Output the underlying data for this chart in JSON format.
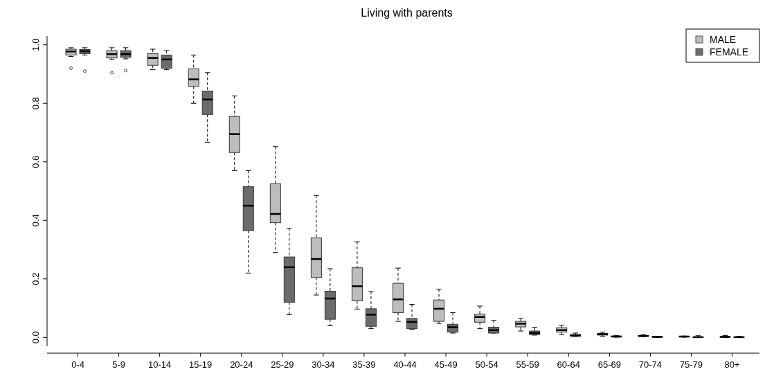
{
  "chart_data": {
    "type": "box",
    "title": "Living with parents",
    "categories": [
      "0-4",
      "5-9",
      "10-14",
      "15-19",
      "20-24",
      "25-29",
      "30-34",
      "35-39",
      "40-44",
      "45-49",
      "50-54",
      "55-59",
      "60-64",
      "65-69",
      "70-74",
      "75-79",
      "80+"
    ],
    "ylim": [
      -0.03,
      1.03
    ],
    "yticks": [
      {
        "value": 0,
        "label": "0.0"
      },
      {
        "value": 0.2,
        "label": "0.2"
      },
      {
        "value": 0.4,
        "label": "0.4"
      },
      {
        "value": 0.6,
        "label": "0.6"
      },
      {
        "value": 0.8,
        "label": "0.8"
      },
      {
        "value": 1,
        "label": "1.0"
      }
    ],
    "legend": "top right",
    "line_style": "dashed",
    "grid": false,
    "series": [
      {
        "name": "MALE",
        "color": "#bdbdbd",
        "boxes": [
          {
            "low": 0.96,
            "q1": 0.965,
            "median": 0.977,
            "q3": 0.985,
            "high": 0.99,
            "outliers": [
              0.92
            ]
          },
          {
            "low": 0.95,
            "q1": 0.955,
            "median": 0.968,
            "q3": 0.98,
            "high": 0.99,
            "outliers": [
              0.905
            ]
          },
          {
            "low": 0.915,
            "q1": 0.93,
            "median": 0.955,
            "q3": 0.97,
            "high": 0.985
          },
          {
            "low": 0.8,
            "q1": 0.858,
            "median": 0.882,
            "q3": 0.918,
            "high": 0.965
          },
          {
            "low": 0.57,
            "q1": 0.632,
            "median": 0.695,
            "q3": 0.755,
            "high": 0.825
          },
          {
            "low": 0.29,
            "q1": 0.392,
            "median": 0.422,
            "q3": 0.525,
            "high": 0.652
          },
          {
            "low": 0.145,
            "q1": 0.205,
            "median": 0.268,
            "q3": 0.34,
            "high": 0.485
          },
          {
            "low": 0.097,
            "q1": 0.125,
            "median": 0.175,
            "q3": 0.238,
            "high": 0.327
          },
          {
            "low": 0.055,
            "q1": 0.085,
            "median": 0.13,
            "q3": 0.185,
            "high": 0.237
          },
          {
            "low": 0.048,
            "q1": 0.055,
            "median": 0.098,
            "q3": 0.128,
            "high": 0.165
          },
          {
            "low": 0.03,
            "q1": 0.052,
            "median": 0.07,
            "q3": 0.08,
            "high": 0.107
          },
          {
            "low": 0.022,
            "q1": 0.036,
            "median": 0.047,
            "q3": 0.055,
            "high": 0.065
          },
          {
            "low": 0.01,
            "q1": 0.018,
            "median": 0.025,
            "q3": 0.033,
            "high": 0.042
          },
          {
            "low": 0.004,
            "q1": 0.008,
            "median": 0.011,
            "q3": 0.014,
            "high": 0.018
          },
          {
            "low": 0.003,
            "q1": 0.004,
            "median": 0.005,
            "q3": 0.007,
            "high": 0.009
          },
          {
            "low": 0.001,
            "q1": 0.002,
            "median": 0.003,
            "q3": 0.004,
            "high": 0.005
          },
          {
            "low": 0,
            "q1": 0.001,
            "median": 0.002,
            "q3": 0.003,
            "high": 0.007
          }
        ]
      },
      {
        "name": "FEMALE",
        "color": "#6b6b6b",
        "boxes": [
          {
            "low": 0.965,
            "q1": 0.97,
            "median": 0.978,
            "q3": 0.984,
            "high": 0.99,
            "outliers": [
              0.91
            ]
          },
          {
            "low": 0.952,
            "q1": 0.957,
            "median": 0.968,
            "q3": 0.98,
            "high": 0.99,
            "outliers": [
              0.912
            ]
          },
          {
            "low": 0.915,
            "q1": 0.92,
            "median": 0.95,
            "q3": 0.965,
            "high": 0.98
          },
          {
            "low": 0.667,
            "q1": 0.762,
            "median": 0.813,
            "q3": 0.842,
            "high": 0.905
          },
          {
            "low": 0.22,
            "q1": 0.365,
            "median": 0.45,
            "q3": 0.515,
            "high": 0.57
          },
          {
            "low": 0.078,
            "q1": 0.12,
            "median": 0.24,
            "q3": 0.275,
            "high": 0.373
          },
          {
            "low": 0.04,
            "q1": 0.062,
            "median": 0.133,
            "q3": 0.158,
            "high": 0.235
          },
          {
            "low": 0.03,
            "q1": 0.038,
            "median": 0.078,
            "q3": 0.098,
            "high": 0.157
          },
          {
            "low": 0.028,
            "q1": 0.03,
            "median": 0.053,
            "q3": 0.065,
            "high": 0.113
          },
          {
            "low": 0.015,
            "q1": 0.018,
            "median": 0.035,
            "q3": 0.045,
            "high": 0.085
          },
          {
            "low": 0.015,
            "q1": 0.015,
            "median": 0.025,
            "q3": 0.035,
            "high": 0.058
          },
          {
            "low": 0.008,
            "q1": 0.01,
            "median": 0.015,
            "q3": 0.022,
            "high": 0.035
          },
          {
            "low": 0.003,
            "q1": 0.004,
            "median": 0.007,
            "q3": 0.01,
            "high": 0.015
          },
          {
            "low": 0.001,
            "q1": 0.002,
            "median": 0.003,
            "q3": 0.005,
            "high": 0.007
          },
          {
            "low": 0,
            "q1": 0.001,
            "median": 0.002,
            "q3": 0.003,
            "high": 0.004
          },
          {
            "low": 0,
            "q1": 0,
            "median": 0.001,
            "q3": 0.002,
            "high": 0.006
          },
          {
            "low": 0,
            "q1": 0,
            "median": 0.001,
            "q3": 0.002,
            "high": 0.004
          }
        ]
      }
    ]
  }
}
